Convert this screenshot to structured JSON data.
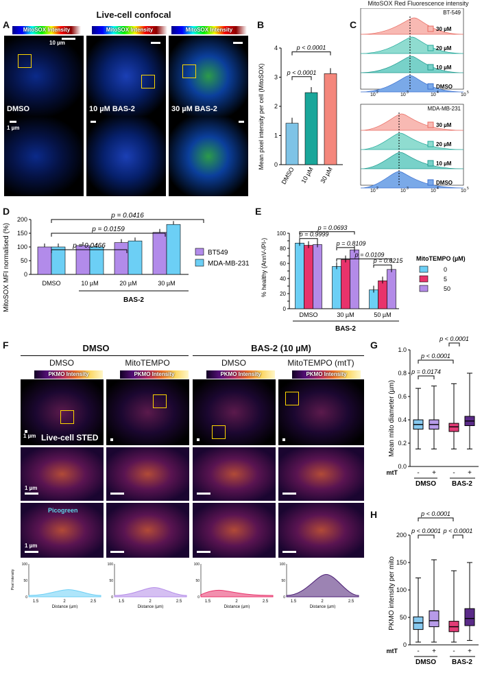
{
  "colors": {
    "dmso_blue": "#7ec3e6",
    "teal": "#1aa69a",
    "salmon": "#f4877c",
    "purple": "#b28bea",
    "cyan": "#6ccff5",
    "pink": "#e8336b",
    "lav": "#b38be8",
    "dark_purple": "#4b1e74"
  },
  "panelA": {
    "letter": "A",
    "title": "Live-cell confocal",
    "colorbar": "MitoSOX Intensity",
    "scale_top": "10 µm",
    "scale_bottom": "1 µm",
    "conds": [
      "DMSO",
      "10 µM BAS-2",
      "30 µM BAS-2"
    ]
  },
  "panelB": {
    "letter": "B",
    "ylabel": "Mean pixel intensity per cell (MitoSOX)",
    "yticks": [
      "0",
      "1",
      "2",
      "3",
      "4"
    ],
    "cats": [
      "DMSO",
      "10 µM",
      "30 µM"
    ],
    "p1": "p < 0.0001",
    "p2": "p < 0.0001"
  },
  "panelC": {
    "letter": "C",
    "title": "MitoSOX Red Fluorescence intensity",
    "top_label": "BT-549",
    "bottom_label": "MDA-MB-231",
    "rows": [
      "30 µM",
      "20 µM",
      "10 µM",
      "DMSO"
    ],
    "xticks": [
      "10",
      "10",
      "10",
      "10"
    ],
    "xexp": [
      "2",
      "3",
      "4",
      "5"
    ]
  },
  "panelD": {
    "letter": "D",
    "ylabel": "MitoSOX MFI normalised (%)",
    "yticks": [
      "0",
      "50",
      "100",
      "150",
      "200"
    ],
    "cats": [
      "DMSO",
      "10 µM",
      "20 µM",
      "30 µM"
    ],
    "group": "BAS-2",
    "legend": [
      "BT549",
      "MDA-MB-231"
    ],
    "pvals": [
      "p = 0.0416",
      "p = 0.0159",
      "p = 0.0466"
    ]
  },
  "panelE": {
    "letter": "E",
    "ylabel": "% healthy (AnnV-/PI-)",
    "yticks": [
      "0",
      "10",
      "20",
      "30",
      "40",
      "50",
      "60",
      "70",
      "80",
      "90",
      "100"
    ],
    "cats": [
      "DMSO",
      "30 µM",
      "50 µM"
    ],
    "group": "BAS-2",
    "legend_title": "MitoTEMPO (µM)",
    "legend": [
      "0",
      "5",
      "50"
    ],
    "pvals": [
      "p = 0.9999",
      "p = 0.0693",
      "p = 0.8109",
      "p = 0.0109",
      "p = 0.6215"
    ]
  },
  "panelF": {
    "letter": "F",
    "group1": "DMSO",
    "group2": "BAS-2 (10 µM)",
    "cols": [
      "DMSO",
      "MitoTEMPO",
      "DMSO",
      "MitoTEMPO (mtT)"
    ],
    "colorbar": "PKMO Intensity",
    "sted": "Live-cell STED",
    "scale": "1 µm",
    "picogreen": "Picogreen",
    "prof_ylabel": "Pixel intensity",
    "prof_xlabel": "Distance (µm)",
    "prof_xticks": [
      "1.5",
      "2",
      "2.5"
    ],
    "prof_yticks": [
      "0",
      "50",
      "100"
    ]
  },
  "panelG": {
    "letter": "G",
    "ylabel": "Mean mito diameter (µm)",
    "yticks": [
      "0.0",
      "0.2",
      "0.4",
      "0.6",
      "0.8",
      "1.0"
    ],
    "pvals": [
      "p < 0.0001",
      "p < 0.0001",
      "p = 0.0174"
    ],
    "mtT": "mtT",
    "signs": [
      "-",
      "+",
      "-",
      "+"
    ],
    "groups": [
      "DMSO",
      "BAS-2"
    ]
  },
  "panelH": {
    "letter": "H",
    "ylabel": "PKMO intensity per mito",
    "yticks": [
      "0",
      "50",
      "100",
      "150",
      "200"
    ],
    "pvals": [
      "p < 0.0001",
      "p < 0.0001",
      "p < 0.0001"
    ],
    "mtT": "mtT",
    "signs": [
      "-",
      "+",
      "-",
      "+"
    ],
    "groups": [
      "DMSO",
      "BAS-2"
    ]
  },
  "chart_data": [
    {
      "type": "bar",
      "panel": "B",
      "categories": [
        "DMSO",
        "10 µM",
        "30 µM"
      ],
      "values": [
        1.42,
        2.47,
        3.12
      ],
      "ylabel": "Mean pixel intensity per cell (MitoSOX)",
      "ylim": [
        0,
        4
      ]
    },
    {
      "type": "bar",
      "panel": "D",
      "categories": [
        "DMSO",
        "10 µM",
        "20 µM",
        "30 µM"
      ],
      "series": [
        {
          "name": "BT549",
          "values": [
            100,
            105,
            116,
            153
          ]
        },
        {
          "name": "MDA-MB-231",
          "values": [
            100,
            100,
            122,
            182
          ]
        }
      ],
      "ylim": [
        0,
        200
      ],
      "ylabel": "MitoSOX MFI normalised (%)"
    },
    {
      "type": "bar",
      "panel": "E",
      "categories": [
        "DMSO",
        "30 µM",
        "50 µM"
      ],
      "series": [
        {
          "name": "0",
          "values": [
            87,
            56,
            25
          ]
        },
        {
          "name": "5",
          "values": [
            84,
            65,
            37
          ]
        },
        {
          "name": "50",
          "values": [
            85,
            78,
            52
          ]
        }
      ],
      "ylim": [
        0,
        100
      ],
      "ylabel": "% healthy (AnnV-/PI-)"
    },
    {
      "type": "box",
      "panel": "G",
      "categories": [
        "DMSO -",
        "DMSO +",
        "BAS-2 -",
        "BAS-2 +"
      ],
      "median": [
        0.36,
        0.36,
        0.34,
        0.39
      ],
      "q1": [
        0.32,
        0.32,
        0.3,
        0.35
      ],
      "q3": [
        0.4,
        0.4,
        0.37,
        0.43
      ],
      "min": [
        0.15,
        0.15,
        0.15,
        0.15
      ],
      "max": [
        0.67,
        0.69,
        0.71,
        0.8
      ],
      "ylim": [
        0,
        1.0
      ]
    },
    {
      "type": "box",
      "panel": "H",
      "categories": [
        "DMSO -",
        "DMSO +",
        "BAS-2 -",
        "BAS-2 +"
      ],
      "median": [
        40,
        44,
        33,
        48
      ],
      "q1": [
        28,
        33,
        24,
        35
      ],
      "q3": [
        51,
        62,
        43,
        66
      ],
      "min": [
        5,
        5,
        5,
        8
      ],
      "max": [
        122,
        155,
        135,
        150
      ],
      "ylim": [
        0,
        200
      ]
    }
  ]
}
